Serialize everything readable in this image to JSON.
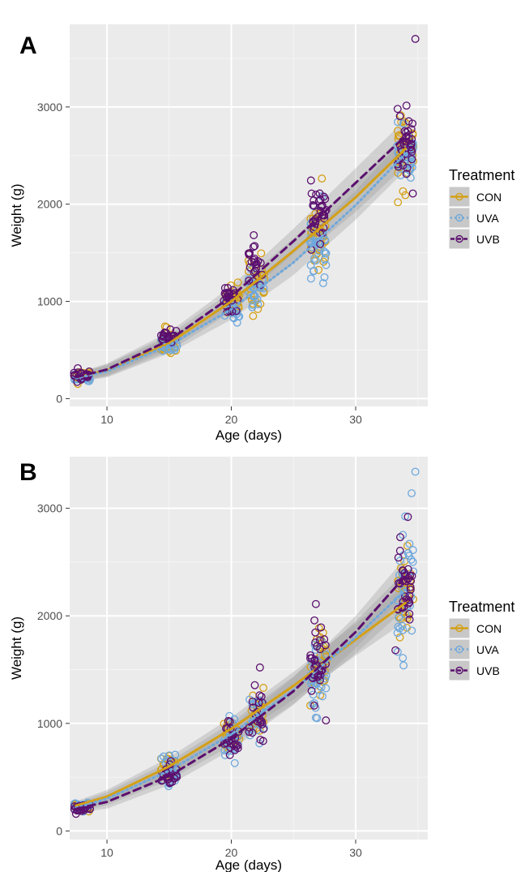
{
  "chart_data": [
    {
      "type": "scatter",
      "panel_label": "A",
      "xlabel": "Age (days)",
      "ylabel": "Weight (g)",
      "xlim": [
        7,
        35.8
      ],
      "ylim": [
        -80,
        3850
      ],
      "xticks": [
        10,
        20,
        30
      ],
      "yticks": [
        0,
        1000,
        2000,
        3000
      ],
      "grid": true,
      "legend": {
        "title": "Treatment",
        "placement": "right",
        "entries": [
          {
            "label": "CON",
            "color": "#D4A017",
            "linestyle": "solid"
          },
          {
            "label": "UVA",
            "color": "#6FA8DC",
            "linestyle": "dotted"
          },
          {
            "label": "UVB",
            "color": "#5B0F6E",
            "linestyle": "dashed"
          }
        ]
      },
      "series": [
        {
          "name": "CON",
          "color": "#D4A017",
          "clusters": [
            {
              "x": 8,
              "mean": 230,
              "sd": 30
            },
            {
              "x": 15,
              "mean": 580,
              "sd": 60
            },
            {
              "x": 20,
              "mean": 1040,
              "sd": 90
            },
            {
              "x": 22,
              "mean": 1180,
              "sd": 130
            },
            {
              "x": 27,
              "mean": 1700,
              "sd": 190
            },
            {
              "x": 34,
              "mean": 2550,
              "sd": 170
            }
          ],
          "fit": [
            [
              7.5,
              215
            ],
            [
              10,
              290
            ],
            [
              15,
              570
            ],
            [
              20,
              1000
            ],
            [
              25,
              1520
            ],
            [
              30,
              2070
            ],
            [
              34,
              2570
            ]
          ]
        },
        {
          "name": "UVA",
          "color": "#6FA8DC",
          "clusters": [
            {
              "x": 8,
              "mean": 220,
              "sd": 25
            },
            {
              "x": 15,
              "mean": 560,
              "sd": 55
            },
            {
              "x": 20,
              "mean": 900,
              "sd": 80
            },
            {
              "x": 22,
              "mean": 1130,
              "sd": 110
            },
            {
              "x": 27,
              "mean": 1620,
              "sd": 170
            },
            {
              "x": 34,
              "mean": 2500,
              "sd": 140
            }
          ],
          "fit": [
            [
              7.5,
              210
            ],
            [
              10,
              280
            ],
            [
              15,
              550
            ],
            [
              20,
              920
            ],
            [
              25,
              1400
            ],
            [
              30,
              1990
            ],
            [
              34,
              2520
            ]
          ]
        },
        {
          "name": "UVB",
          "color": "#5B0F6E",
          "clusters": [
            {
              "x": 8,
              "mean": 240,
              "sd": 25
            },
            {
              "x": 15,
              "mean": 640,
              "sd": 50
            },
            {
              "x": 20,
              "mean": 1020,
              "sd": 80
            },
            {
              "x": 22,
              "mean": 1360,
              "sd": 120
            },
            {
              "x": 27,
              "mean": 1880,
              "sd": 160
            },
            {
              "x": 34,
              "mean": 2720,
              "sd": 200
            }
          ],
          "fit": [
            [
              7.5,
              220
            ],
            [
              10,
              300
            ],
            [
              15,
              600
            ],
            [
              20,
              1050
            ],
            [
              25,
              1620
            ],
            [
              30,
              2220
            ],
            [
              34,
              2700
            ]
          ]
        }
      ],
      "outliers": [
        {
          "series": "UVB",
          "x": 34.8,
          "y": 3700
        },
        {
          "series": "UVB",
          "x": 34.6,
          "y": 2110
        },
        {
          "series": "CON",
          "x": 33.4,
          "y": 2020
        }
      ]
    },
    {
      "type": "scatter",
      "panel_label": "B",
      "xlabel": "Age (days)",
      "ylabel": "Weight (g)",
      "xlim": [
        7,
        35.8
      ],
      "ylim": [
        -80,
        3480
      ],
      "xticks": [
        10,
        20,
        30
      ],
      "yticks": [
        0,
        1000,
        2000,
        3000
      ],
      "grid": true,
      "legend": {
        "title": "Treatment",
        "placement": "right",
        "entries": [
          {
            "label": "CON",
            "color": "#D4A017",
            "linestyle": "solid"
          },
          {
            "label": "UVA",
            "color": "#6FA8DC",
            "linestyle": "dotted"
          },
          {
            "label": "UVB",
            "color": "#5B0F6E",
            "linestyle": "dashed"
          }
        ]
      },
      "series": [
        {
          "name": "CON",
          "color": "#D4A017",
          "clusters": [
            {
              "x": 8,
              "mean": 240,
              "sd": 25
            },
            {
              "x": 15,
              "mean": 600,
              "sd": 55
            },
            {
              "x": 20,
              "mean": 920,
              "sd": 80
            },
            {
              "x": 22,
              "mean": 1100,
              "sd": 100
            },
            {
              "x": 27,
              "mean": 1580,
              "sd": 140
            },
            {
              "x": 34,
              "mean": 2150,
              "sd": 180
            }
          ],
          "fit": [
            [
              7.5,
              235
            ],
            [
              10,
              320
            ],
            [
              15,
              600
            ],
            [
              20,
              950
            ],
            [
              25,
              1350
            ],
            [
              30,
              1780
            ],
            [
              34,
              2120
            ]
          ]
        },
        {
          "name": "UVA",
          "color": "#6FA8DC",
          "clusters": [
            {
              "x": 8,
              "mean": 220,
              "sd": 25
            },
            {
              "x": 15,
              "mean": 560,
              "sd": 75
            },
            {
              "x": 20,
              "mean": 850,
              "sd": 100
            },
            {
              "x": 22,
              "mean": 1080,
              "sd": 130
            },
            {
              "x": 27,
              "mean": 1500,
              "sd": 160
            },
            {
              "x": 34,
              "mean": 2200,
              "sd": 300
            }
          ],
          "fit": [
            [
              7.5,
              215
            ],
            [
              10,
              300
            ],
            [
              15,
              560
            ],
            [
              20,
              900
            ],
            [
              25,
              1310
            ],
            [
              30,
              1800
            ],
            [
              34,
              2240
            ]
          ]
        },
        {
          "name": "UVB",
          "color": "#5B0F6E",
          "clusters": [
            {
              "x": 8,
              "mean": 215,
              "sd": 25
            },
            {
              "x": 15,
              "mean": 520,
              "sd": 60
            },
            {
              "x": 20,
              "mean": 860,
              "sd": 90
            },
            {
              "x": 22,
              "mean": 1040,
              "sd": 110
            },
            {
              "x": 27,
              "mean": 1550,
              "sd": 170
            },
            {
              "x": 34,
              "mean": 2320,
              "sd": 200
            }
          ],
          "fit": [
            [
              7.5,
              205
            ],
            [
              10,
              270
            ],
            [
              15,
              510
            ],
            [
              20,
              860
            ],
            [
              25,
              1300
            ],
            [
              30,
              1850
            ],
            [
              34,
              2370
            ]
          ]
        }
      ],
      "outliers": [
        {
          "series": "UVA",
          "x": 34.8,
          "y": 3340
        },
        {
          "series": "UVA",
          "x": 34.5,
          "y": 3140
        },
        {
          "series": "UVB",
          "x": 34.2,
          "y": 2920
        },
        {
          "series": "UVB",
          "x": 26.8,
          "y": 2110
        },
        {
          "series": "UVB",
          "x": 22.3,
          "y": 1520
        },
        {
          "series": "UVB",
          "x": 33.2,
          "y": 1680
        }
      ]
    }
  ]
}
